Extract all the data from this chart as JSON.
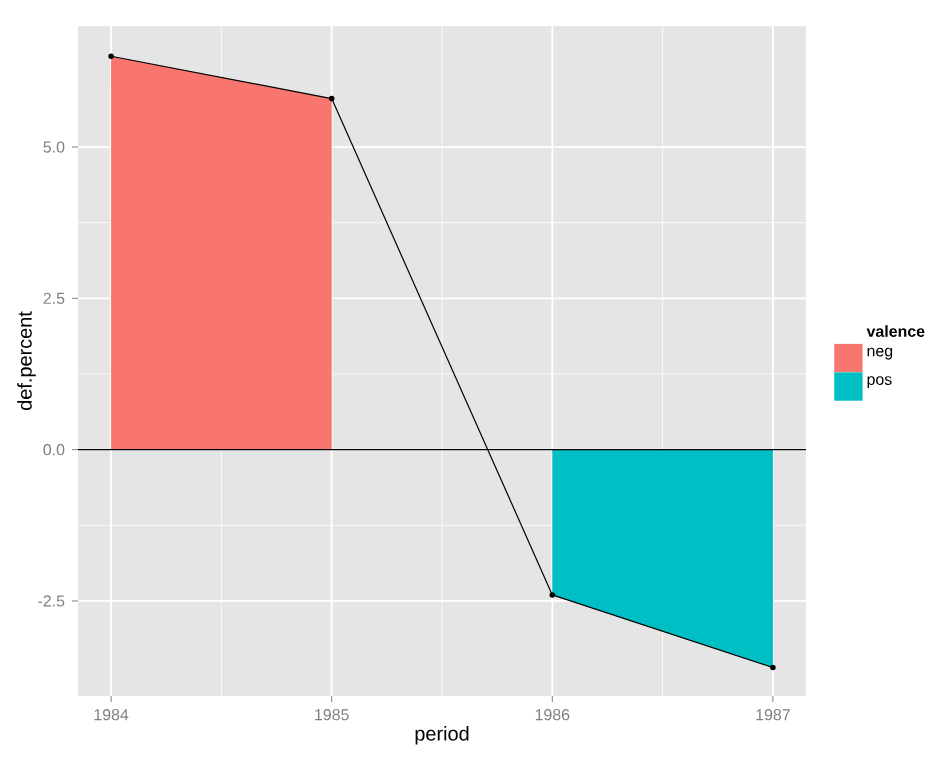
{
  "chart_data": {
    "type": "area",
    "xlabel": "period",
    "ylabel": "def.percent",
    "legend_title": "valence",
    "legend": "right",
    "grid": true,
    "xlim": [
      1983.85,
      1987.15
    ],
    "ylim": [
      -4.07,
      7.0
    ],
    "xticks": [
      1984,
      1985,
      1986,
      1987
    ],
    "yticks": [
      -2.5,
      {
        "value": 0,
        "label": "0.0"
      },
      2.5,
      {
        "value": 5,
        "label": "5.0"
      }
    ],
    "ref_lines": [
      {
        "axis": "y",
        "value": 0,
        "color": "#000000"
      }
    ],
    "series": [
      {
        "name": "neg",
        "color": "#f8766d",
        "x": [
          1984,
          1985
        ],
        "values": [
          6.5,
          5.8
        ]
      },
      {
        "name": "pos",
        "color": "#00bfc4",
        "x": [
          1986,
          1987
        ],
        "values": [
          -2.4,
          -3.6
        ]
      },
      {
        "type": "line",
        "color": "#000000",
        "marker": "circle",
        "x": [
          1984,
          1985,
          1986,
          1987
        ],
        "values": [
          6.5,
          5.8,
          -2.4,
          -3.6
        ]
      }
    ]
  }
}
